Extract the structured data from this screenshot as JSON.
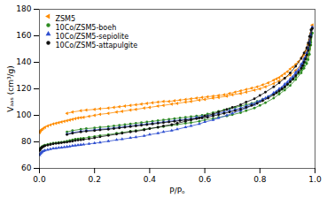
{
  "chart_data": {
    "type": "line",
    "xlabel": "P/Pₒ",
    "ylabel": "Vₐₐₛ (cm³/g)",
    "xlim": [
      0.0,
      1.0
    ],
    "ylim": [
      60,
      180
    ],
    "xticks": [
      {
        "value": 0.0,
        "label": "0.0"
      },
      0.2,
      0.4,
      0.6,
      0.8,
      {
        "value": 1.0,
        "label": "1.0"
      }
    ],
    "yticks": [
      60,
      80,
      100,
      120,
      140,
      160,
      180
    ],
    "grid": false,
    "legend": "upper left",
    "series": [
      {
        "name": "ZSM5",
        "color": "#FF8C00",
        "marker": "triangle-left",
        "adsorption_x": [
          0.001,
          0.003,
          0.005,
          0.008,
          0.01,
          0.015,
          0.02,
          0.03,
          0.04,
          0.05,
          0.06,
          0.07,
          0.08,
          0.09,
          0.1,
          0.11,
          0.12,
          0.13,
          0.14,
          0.15,
          0.16,
          0.18,
          0.2,
          0.22,
          0.25,
          0.28,
          0.3,
          0.33,
          0.35,
          0.38,
          0.4,
          0.43,
          0.45,
          0.48,
          0.5,
          0.53,
          0.55,
          0.58,
          0.6,
          0.63,
          0.65,
          0.68,
          0.7,
          0.73,
          0.75,
          0.78,
          0.8,
          0.82,
          0.85,
          0.87,
          0.89,
          0.91,
          0.93,
          0.95,
          0.96,
          0.97,
          0.975,
          0.98,
          0.985,
          0.99
        ],
        "adsorption_y": [
          87.0,
          88.0,
          88.5,
          89.2,
          89.5,
          90.2,
          91.0,
          92.0,
          92.8,
          93.5,
          94.0,
          94.5,
          95.0,
          95.5,
          96.0,
          96.5,
          97.0,
          97.5,
          98.0,
          98.3,
          98.5,
          99.3,
          100.0,
          100.8,
          101.5,
          102.5,
          103.0,
          104.0,
          104.5,
          105.5,
          106.0,
          107.0,
          107.5,
          108.5,
          109.0,
          110.0,
          110.5,
          111.5,
          112.0,
          113.0,
          113.5,
          114.5,
          115.5,
          116.5,
          117.5,
          119.0,
          120.0,
          121.5,
          124.0,
          126.0,
          128.0,
          130.5,
          134.0,
          138.5,
          141.0,
          143.0,
          146.0,
          150.0,
          158.0,
          168.0
        ],
        "desorption_x": [
          0.99,
          0.985,
          0.98,
          0.975,
          0.97,
          0.965,
          0.96,
          0.955,
          0.95,
          0.94,
          0.93,
          0.92,
          0.91,
          0.9,
          0.89,
          0.88,
          0.87,
          0.86,
          0.85,
          0.83,
          0.81,
          0.79,
          0.77,
          0.75,
          0.73,
          0.71,
          0.69,
          0.67,
          0.65,
          0.63,
          0.61,
          0.59,
          0.57,
          0.55,
          0.53,
          0.51,
          0.49,
          0.47,
          0.45,
          0.43,
          0.41,
          0.39,
          0.37,
          0.35,
          0.33,
          0.31,
          0.29,
          0.27,
          0.25,
          0.22,
          0.2,
          0.17,
          0.15,
          0.12,
          0.1
        ],
        "desorption_y": [
          168.0,
          162.0,
          157.0,
          153.5,
          150.5,
          148.0,
          146.0,
          144.5,
          143.0,
          140.5,
          138.5,
          136.5,
          135.0,
          133.0,
          131.5,
          130.0,
          128.5,
          127.5,
          126.5,
          124.5,
          123.0,
          121.5,
          120.5,
          119.5,
          118.5,
          117.5,
          116.5,
          115.5,
          115.0,
          114.5,
          114.0,
          113.5,
          113.0,
          112.5,
          112.0,
          111.5,
          111.0,
          110.5,
          110.5,
          110.0,
          109.5,
          109.0,
          108.5,
          108.0,
          107.5,
          107.0,
          106.5,
          106.0,
          105.5,
          105.0,
          104.5,
          104.0,
          103.5,
          102.5,
          101.5
        ]
      },
      {
        "name": "10Co/ZSM5-boeh",
        "color": "#2e8b22",
        "marker": "circle",
        "adsorption_x": [
          0.001,
          0.003,
          0.005,
          0.008,
          0.01,
          0.015,
          0.02,
          0.03,
          0.04,
          0.05,
          0.06,
          0.07,
          0.08,
          0.09,
          0.1,
          0.11,
          0.12,
          0.13,
          0.14,
          0.15,
          0.16,
          0.18,
          0.2,
          0.22,
          0.25,
          0.28,
          0.3,
          0.33,
          0.35,
          0.38,
          0.4,
          0.43,
          0.45,
          0.48,
          0.5,
          0.53,
          0.55,
          0.58,
          0.6,
          0.63,
          0.65,
          0.68,
          0.7,
          0.73,
          0.75,
          0.78,
          0.8,
          0.82,
          0.85,
          0.87,
          0.89,
          0.91,
          0.93,
          0.95,
          0.96,
          0.97,
          0.975,
          0.98,
          0.985,
          0.99
        ],
        "adsorption_y": [
          74.0,
          75.0,
          75.5,
          76.0,
          76.5,
          77.0,
          77.5,
          78.0,
          78.5,
          79.0,
          79.3,
          79.5,
          79.8,
          80.0,
          80.5,
          81.0,
          81.5,
          82.0,
          82.3,
          82.5,
          82.8,
          83.5,
          84.0,
          84.8,
          85.5,
          86.5,
          87.0,
          88.0,
          88.5,
          89.5,
          90.0,
          91.0,
          91.5,
          92.5,
          93.0,
          94.0,
          94.5,
          95.5,
          96.5,
          97.5,
          98.5,
          99.5,
          100.5,
          102.0,
          103.5,
          105.5,
          107.5,
          109.5,
          113.0,
          116.0,
          119.0,
          122.5,
          127.0,
          132.0,
          135.5,
          139.0,
          142.0,
          146.0,
          153.0,
          162.0
        ],
        "desorption_x": [
          0.99,
          0.985,
          0.98,
          0.975,
          0.97,
          0.965,
          0.96,
          0.955,
          0.95,
          0.94,
          0.93,
          0.92,
          0.91,
          0.9,
          0.89,
          0.88,
          0.87,
          0.86,
          0.85,
          0.83,
          0.81,
          0.79,
          0.77,
          0.75,
          0.73,
          0.71,
          0.69,
          0.67,
          0.65,
          0.63,
          0.61,
          0.59,
          0.57,
          0.55,
          0.53,
          0.51,
          0.49,
          0.47,
          0.45,
          0.43,
          0.41,
          0.39,
          0.37,
          0.35,
          0.33,
          0.31,
          0.29,
          0.27,
          0.25,
          0.22,
          0.2,
          0.17,
          0.15,
          0.12,
          0.1
        ],
        "desorption_y": [
          162.0,
          155.0,
          150.0,
          146.0,
          142.5,
          140.0,
          137.5,
          135.5,
          134.0,
          131.5,
          129.0,
          127.0,
          125.0,
          123.0,
          121.0,
          119.5,
          118.0,
          117.0,
          116.0,
          114.0,
          112.0,
          110.5,
          109.0,
          108.0,
          107.0,
          106.0,
          105.0,
          104.0,
          103.0,
          102.0,
          101.0,
          100.0,
          99.5,
          99.0,
          98.5,
          98.0,
          97.5,
          97.0,
          96.5,
          96.0,
          95.5,
          95.0,
          94.5,
          94.0,
          93.5,
          93.0,
          92.5,
          92.0,
          91.5,
          91.0,
          90.5,
          90.0,
          89.5,
          88.5,
          87.5
        ]
      },
      {
        "name": "10Co/ZSM5-sepiolite",
        "color": "#3050d0",
        "marker": "triangle-up",
        "adsorption_x": [
          0.001,
          0.003,
          0.005,
          0.008,
          0.01,
          0.015,
          0.02,
          0.03,
          0.04,
          0.05,
          0.06,
          0.07,
          0.08,
          0.09,
          0.1,
          0.11,
          0.12,
          0.13,
          0.14,
          0.15,
          0.16,
          0.18,
          0.2,
          0.22,
          0.25,
          0.28,
          0.3,
          0.33,
          0.35,
          0.38,
          0.4,
          0.43,
          0.45,
          0.48,
          0.5,
          0.53,
          0.55,
          0.58,
          0.6,
          0.63,
          0.65,
          0.68,
          0.7,
          0.73,
          0.75,
          0.78,
          0.8,
          0.82,
          0.85,
          0.87,
          0.89,
          0.91,
          0.93,
          0.95,
          0.96,
          0.97,
          0.975,
          0.98,
          0.985,
          0.99
        ],
        "adsorption_y": [
          70.0,
          71.0,
          71.5,
          72.0,
          72.5,
          73.0,
          73.5,
          74.0,
          74.5,
          75.0,
          75.2,
          75.5,
          75.7,
          76.0,
          76.3,
          76.6,
          77.0,
          77.3,
          77.5,
          77.8,
          78.0,
          78.5,
          79.0,
          79.5,
          80.5,
          81.5,
          82.0,
          83.0,
          83.5,
          84.5,
          85.5,
          86.5,
          87.5,
          88.5,
          89.5,
          91.0,
          92.0,
          93.5,
          95.0,
          96.5,
          98.0,
          100.0,
          101.5,
          103.5,
          105.5,
          108.0,
          110.5,
          113.0,
          117.0,
          120.0,
          123.5,
          127.5,
          132.5,
          138.5,
          142.5,
          147.0,
          150.5,
          155.5,
          161.0,
          166.5
        ],
        "desorption_x": [
          0.99,
          0.985,
          0.98,
          0.975,
          0.97,
          0.965,
          0.96,
          0.955,
          0.95,
          0.94,
          0.93,
          0.92,
          0.91,
          0.9,
          0.89,
          0.88,
          0.87,
          0.86,
          0.85,
          0.83,
          0.81,
          0.79,
          0.77,
          0.75,
          0.73,
          0.71,
          0.69,
          0.67,
          0.65,
          0.63,
          0.61,
          0.59,
          0.57,
          0.55,
          0.53,
          0.51,
          0.49,
          0.47,
          0.45,
          0.43,
          0.41,
          0.39,
          0.37,
          0.35,
          0.33,
          0.31,
          0.29,
          0.27,
          0.25,
          0.22,
          0.2,
          0.17,
          0.15,
          0.12,
          0.1
        ],
        "desorption_y": [
          166.5,
          160.0,
          154.5,
          150.5,
          147.0,
          144.0,
          141.0,
          139.0,
          137.0,
          134.0,
          131.5,
          129.0,
          127.0,
          125.0,
          123.0,
          121.0,
          119.5,
          118.0,
          116.5,
          114.0,
          112.0,
          110.0,
          108.5,
          107.0,
          105.5,
          104.5,
          103.5,
          102.5,
          101.5,
          100.5,
          99.5,
          99.0,
          98.5,
          97.5,
          97.0,
          96.5,
          96.0,
          95.5,
          95.0,
          94.5,
          94.0,
          93.5,
          93.0,
          92.5,
          92.0,
          91.5,
          91.0,
          90.5,
          90.0,
          89.5,
          89.0,
          88.5,
          88.0,
          87.0,
          86.0
        ]
      },
      {
        "name": "10Co/ZSM5-attapulgite",
        "color": "#111111",
        "marker": "circle",
        "adsorption_x": [
          0.001,
          0.003,
          0.005,
          0.008,
          0.01,
          0.015,
          0.02,
          0.03,
          0.04,
          0.05,
          0.06,
          0.07,
          0.08,
          0.09,
          0.1,
          0.11,
          0.12,
          0.13,
          0.14,
          0.15,
          0.16,
          0.18,
          0.2,
          0.22,
          0.25,
          0.28,
          0.3,
          0.33,
          0.35,
          0.38,
          0.4,
          0.43,
          0.45,
          0.48,
          0.5,
          0.53,
          0.55,
          0.58,
          0.6,
          0.63,
          0.65,
          0.68,
          0.7,
          0.73,
          0.75,
          0.78,
          0.8,
          0.82,
          0.85,
          0.87,
          0.89,
          0.91,
          0.93,
          0.95,
          0.96,
          0.97,
          0.975,
          0.98,
          0.985,
          0.99
        ],
        "adsorption_y": [
          73.5,
          74.5,
          75.0,
          75.5,
          76.0,
          76.5,
          77.0,
          77.5,
          78.0,
          78.5,
          78.8,
          79.0,
          79.3,
          79.6,
          79.8,
          80.2,
          80.5,
          81.0,
          81.3,
          81.5,
          81.8,
          82.3,
          83.0,
          83.8,
          84.8,
          85.8,
          86.5,
          87.5,
          88.0,
          89.0,
          90.0,
          91.0,
          92.0,
          93.0,
          94.0,
          95.5,
          96.5,
          98.0,
          99.5,
          101.0,
          102.5,
          104.5,
          106.0,
          108.0,
          110.0,
          112.5,
          115.0,
          117.5,
          121.5,
          124.5,
          128.0,
          132.0,
          137.0,
          143.0,
          147.0,
          151.0,
          154.5,
          159.5,
          164.5,
          165.5
        ],
        "desorption_x": [
          0.99,
          0.985,
          0.98,
          0.975,
          0.97,
          0.965,
          0.96,
          0.955,
          0.95,
          0.94,
          0.93,
          0.92,
          0.91,
          0.9,
          0.89,
          0.88,
          0.87,
          0.86,
          0.85,
          0.83,
          0.81,
          0.79,
          0.77,
          0.75,
          0.73,
          0.71,
          0.69,
          0.67,
          0.65,
          0.63,
          0.61,
          0.59,
          0.57,
          0.55,
          0.53,
          0.51,
          0.49,
          0.47,
          0.45,
          0.43,
          0.41,
          0.39,
          0.37,
          0.35,
          0.33,
          0.31,
          0.29,
          0.27,
          0.25,
          0.22,
          0.2,
          0.17,
          0.15,
          0.12,
          0.1
        ],
        "desorption_y": [
          165.5,
          159.0,
          153.0,
          149.0,
          145.5,
          142.5,
          140.0,
          137.5,
          135.5,
          132.5,
          130.0,
          127.5,
          125.5,
          123.5,
          121.5,
          120.0,
          118.5,
          117.0,
          115.5,
          113.0,
          111.0,
          109.0,
          107.5,
          106.0,
          104.5,
          103.5,
          102.5,
          101.5,
          100.5,
          99.5,
          98.5,
          98.0,
          97.5,
          97.0,
          96.5,
          96.0,
          95.5,
          95.0,
          94.5,
          94.0,
          93.5,
          93.0,
          92.5,
          92.0,
          91.5,
          91.0,
          90.5,
          90.0,
          89.5,
          89.0,
          88.5,
          88.0,
          87.5,
          86.5,
          85.5
        ]
      }
    ]
  }
}
